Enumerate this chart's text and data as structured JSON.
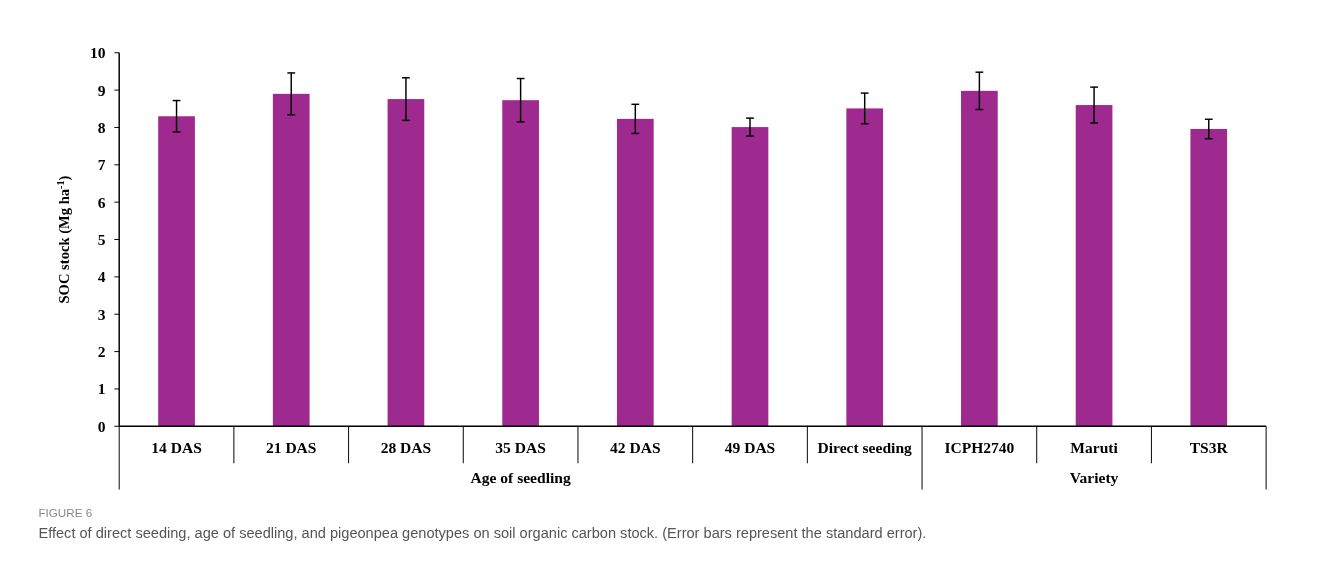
{
  "chart_data": {
    "type": "bar",
    "ylabel": "SOC stock (Mg ha$^{-1}$)",
    "categories": [
      "14 DAS",
      "21 DAS",
      "28 DAS",
      "35 DAS",
      "42 DAS",
      "49 DAS",
      "Direct seeding",
      "ICPH2740",
      "Maruti",
      "TS3R"
    ],
    "values": [
      8.3,
      8.9,
      8.76,
      8.73,
      8.23,
      8.01,
      8.51,
      8.98,
      8.6,
      7.96
    ],
    "errors": [
      0.42,
      0.56,
      0.57,
      0.58,
      0.39,
      0.24,
      0.41,
      0.5,
      0.48,
      0.26
    ],
    "color": "#9f2a8f",
    "ylim": [
      0,
      10
    ],
    "yticks": [
      0,
      1,
      2,
      3,
      4,
      5,
      6,
      7,
      8,
      9,
      10
    ],
    "grid": false,
    "annotations": [
      "Age of seedling",
      "Variety",
      "FIGURE 6",
      "Effect of direct seeding, age of seedling, and pigeonpea genotypes on soil organic carbon stock. (Error bars represent the standard error)."
    ]
  }
}
